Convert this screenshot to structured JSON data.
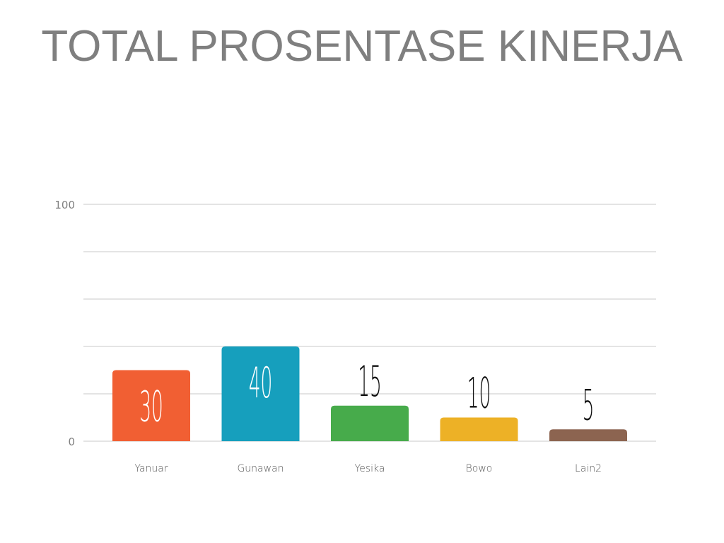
{
  "chart_data": {
    "type": "bar",
    "title": "TOTAL PROSENTASE KINERJA",
    "categories": [
      "Yanuar",
      "Gunawan",
      "Yesika",
      "Bowo",
      "Lain2"
    ],
    "values": [
      30,
      40,
      15,
      10,
      5
    ],
    "data_labels": [
      "30",
      "40",
      "15",
      "10",
      "5"
    ],
    "colors": [
      "#F15F33",
      "#169FBD",
      "#47AB4B",
      "#EDB126",
      "#8C6450"
    ],
    "ylim": [
      0,
      100
    ],
    "yticks": [
      0,
      20,
      40,
      60,
      80,
      100
    ],
    "ytick_labels": [
      "0",
      "100"
    ],
    "grid": true,
    "xlabel": "",
    "ylabel": ""
  }
}
